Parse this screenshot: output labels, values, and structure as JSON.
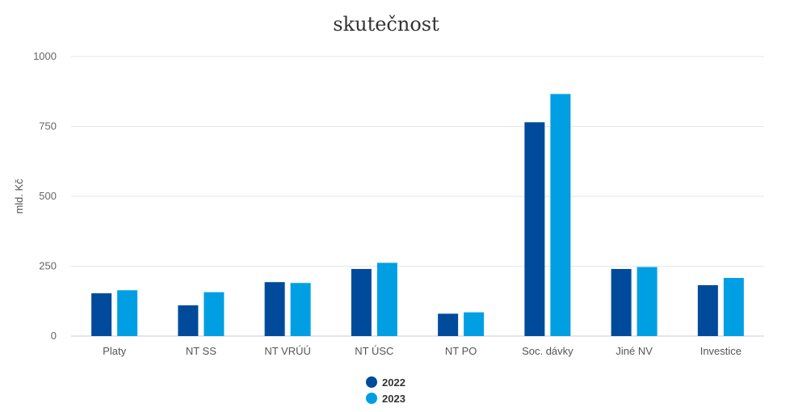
{
  "chart_data": {
    "type": "bar",
    "title": "skutečnost",
    "ylabel": "mld. Kč",
    "xlabel": "",
    "ylim": [
      0,
      1000
    ],
    "yticks": [
      0,
      250,
      500,
      750,
      1000
    ],
    "grid": true,
    "legend_position": "bottom",
    "categories": [
      "Platy",
      "NT SS",
      "NT VRÚÚ",
      "NT ÚSC",
      "NT PO",
      "Soc. dávky",
      "Jiné NV",
      "Investice"
    ],
    "series": [
      {
        "name": "2022",
        "color": "#004a9c",
        "values": [
          153,
          110,
          193,
          240,
          80,
          765,
          240,
          182
        ]
      },
      {
        "name": "2023",
        "color": "#009fe3",
        "values": [
          164,
          157,
          190,
          262,
          85,
          866,
          247,
          208
        ]
      }
    ]
  }
}
